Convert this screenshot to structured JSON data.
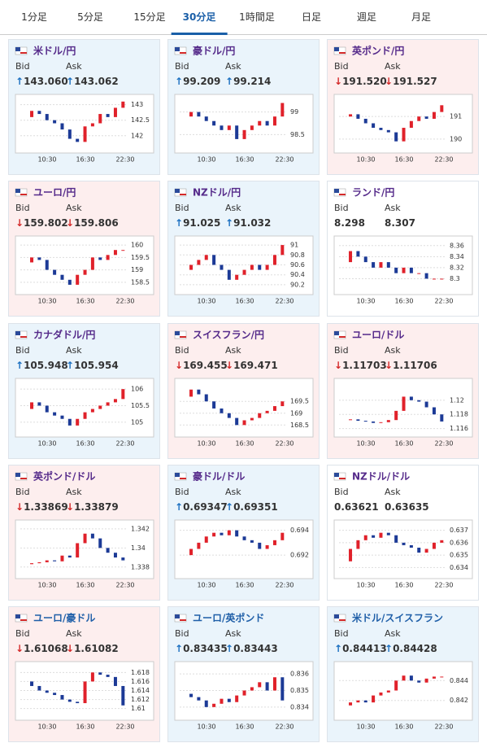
{
  "tabs": [
    "1分足",
    "5分足",
    "15分足",
    "30分足",
    "1時間足",
    "日足",
    "週足",
    "月足"
  ],
  "active_tab": 3,
  "up_color": "#e0212a",
  "down_color": "#1c3a96",
  "cards": [
    {
      "title": "米ドル/円",
      "title_color": "#552a8a",
      "bid_label": "Bid",
      "ask_label": "Ask",
      "arrow": "↑",
      "trend": "up",
      "bid": "143.060",
      "ask": "143.062",
      "ylim": [
        141.6,
        143.2
      ],
      "yticks": [
        142,
        142.5,
        143
      ],
      "xlabels": [
        "10:30",
        "16:30",
        "22:30"
      ],
      "values": [
        142.6,
        142.8,
        142.7,
        142.5,
        142.4,
        142.2,
        141.9,
        141.8,
        142.3,
        142.4,
        142.7,
        142.6,
        142.9,
        143.1
      ]
    },
    {
      "title": "豪ドル/円",
      "title_color": "#552a8a",
      "bid_label": "Bid",
      "ask_label": "Ask",
      "arrow": "↑",
      "trend": "up",
      "bid": "99.209",
      "ask": "99.214",
      "ylim": [
        98.2,
        99.3
      ],
      "yticks": [
        98.5,
        99
      ],
      "xlabels": [
        "10:30",
        "16:30",
        "22:30"
      ],
      "values": [
        98.9,
        99.0,
        98.9,
        98.8,
        98.7,
        98.6,
        98.7,
        98.4,
        98.6,
        98.7,
        98.8,
        98.7,
        98.9,
        99.2
      ]
    },
    {
      "title": "英ポンド/円",
      "title_color": "#552a8a",
      "bid_label": "Bid",
      "ask_label": "Ask",
      "arrow": "↓",
      "trend": "down",
      "bid": "191.520",
      "ask": "191.527",
      "ylim": [
        189.6,
        191.8
      ],
      "yticks": [
        190,
        191
      ],
      "xlabels": [
        "10:30",
        "16:30",
        "22:30"
      ],
      "values": [
        191.0,
        191.1,
        190.9,
        190.7,
        190.5,
        190.4,
        190.3,
        189.9,
        190.5,
        190.8,
        191.0,
        190.9,
        191.2,
        191.5
      ]
    },
    {
      "title": "ユーロ/円",
      "title_color": "#552a8a",
      "bid_label": "Bid",
      "ask_label": "Ask",
      "arrow": "↓",
      "trend": "down",
      "bid": "159.802",
      "ask": "159.806",
      "ylim": [
        158.2,
        160.2
      ],
      "yticks": [
        158.5,
        159,
        159.5,
        160
      ],
      "xlabels": [
        "10:30",
        "16:30",
        "22:30"
      ],
      "values": [
        159.3,
        159.5,
        159.4,
        159.0,
        158.8,
        158.6,
        158.4,
        158.8,
        159.0,
        159.5,
        159.4,
        159.6,
        159.8,
        159.8
      ]
    },
    {
      "title": "NZドル/円",
      "title_color": "#552a8a",
      "bid_label": "Bid",
      "ask_label": "Ask",
      "arrow": "↑",
      "trend": "up",
      "bid": "91.025",
      "ask": "91.032",
      "ylim": [
        90.1,
        91.1
      ],
      "yticks": [
        90.2,
        90.4,
        90.6,
        90.8,
        91
      ],
      "xlabels": [
        "10:30",
        "16:30",
        "22:30"
      ],
      "values": [
        90.5,
        90.6,
        90.7,
        90.8,
        90.6,
        90.5,
        90.3,
        90.4,
        90.5,
        90.6,
        90.5,
        90.6,
        90.8,
        91.0
      ]
    },
    {
      "title": "ランド/円",
      "title_color": "#552a8a",
      "bid_label": "Bid",
      "ask_label": "Ask",
      "trend": "flat",
      "bid": "8.298",
      "ask": "8.307",
      "ylim": [
        8.28,
        8.37
      ],
      "yticks": [
        8.3,
        8.32,
        8.34,
        8.36
      ],
      "xlabels": [
        "10:30",
        "16:30",
        "22:30"
      ],
      "values": [
        8.33,
        8.35,
        8.34,
        8.33,
        8.32,
        8.33,
        8.32,
        8.31,
        8.32,
        8.31,
        8.31,
        8.3,
        8.3,
        8.3
      ]
    },
    {
      "title": "カナダドル/円",
      "title_color": "#552a8a",
      "bid_label": "Bid",
      "ask_label": "Ask",
      "arrow": "↑",
      "trend": "up",
      "bid": "105.948",
      "ask": "105.954",
      "ylim": [
        104.7,
        106.2
      ],
      "yticks": [
        105,
        105.5,
        106
      ],
      "xlabels": [
        "10:30",
        "16:30",
        "22:30"
      ],
      "values": [
        105.4,
        105.6,
        105.5,
        105.3,
        105.2,
        105.1,
        104.9,
        105.1,
        105.3,
        105.4,
        105.5,
        105.6,
        105.7,
        106.0
      ]
    },
    {
      "title": "スイスフラン/円",
      "title_color": "#552a8a",
      "bid_label": "Bid",
      "ask_label": "Ask",
      "arrow": "↓",
      "trend": "down",
      "bid": "169.455",
      "ask": "169.471",
      "ylim": [
        168.2,
        170.3
      ],
      "yticks": [
        168.5,
        169,
        169.5
      ],
      "xlabels": [
        "10:30",
        "16:30",
        "22:30"
      ],
      "values": [
        169.7,
        170.0,
        169.8,
        169.5,
        169.2,
        169.0,
        168.8,
        168.5,
        168.7,
        168.8,
        169.0,
        169.1,
        169.3,
        169.5
      ]
    },
    {
      "title": "ユーロ/ドル",
      "title_color": "#552a8a",
      "bid_label": "Bid",
      "ask_label": "Ask",
      "arrow": "↓",
      "trend": "down",
      "bid": "1.11703",
      "ask": "1.11706",
      "ylim": [
        1.1155,
        1.1225
      ],
      "yticks": [
        1.116,
        1.118,
        1.12
      ],
      "xlabels": [
        "10:30",
        "16:30",
        "22:30"
      ],
      "values": [
        1.1172,
        1.1173,
        1.1171,
        1.117,
        1.1168,
        1.1169,
        1.1172,
        1.1185,
        1.1205,
        1.12,
        1.1198,
        1.119,
        1.118,
        1.117
      ]
    },
    {
      "title": "英ポンド/ドル",
      "title_color": "#552a8a",
      "bid_label": "Bid",
      "ask_label": "Ask",
      "arrow": "↓",
      "trend": "down",
      "bid": "1.33869",
      "ask": "1.33879",
      "ylim": [
        1.3373,
        1.3425
      ],
      "yticks": [
        1.338,
        1.34,
        1.342
      ],
      "xlabels": [
        "10:30",
        "16:30",
        "22:30"
      ],
      "values": [
        1.3383,
        1.3384,
        1.3385,
        1.3387,
        1.3386,
        1.3392,
        1.339,
        1.3405,
        1.3415,
        1.341,
        1.34,
        1.3395,
        1.339,
        1.3387
      ]
    },
    {
      "title": "豪ドル/ドル",
      "title_color": "#552a8a",
      "bid_label": "Bid",
      "ask_label": "Ask",
      "arrow": "↑",
      "trend": "up",
      "bid": "0.69347",
      "ask": "0.69351",
      "ylim": [
        0.6905,
        0.6945
      ],
      "yticks": [
        0.692,
        0.694
      ],
      "xlabels": [
        "10:30",
        "16:30",
        "22:30"
      ],
      "values": [
        0.692,
        0.6925,
        0.693,
        0.6935,
        0.6938,
        0.6936,
        0.694,
        0.6935,
        0.6932,
        0.693,
        0.6925,
        0.6928,
        0.6932,
        0.6938
      ]
    },
    {
      "title": "NZドル/ドル",
      "title_color": "#552a8a",
      "bid_label": "Bid",
      "ask_label": "Ask",
      "trend": "flat",
      "bid": "0.63621",
      "ask": "0.63635",
      "ylim": [
        0.6335,
        0.6375
      ],
      "yticks": [
        0.634,
        0.635,
        0.636,
        0.637
      ],
      "xlabels": [
        "10:30",
        "16:30",
        "22:30"
      ],
      "values": [
        0.6345,
        0.6355,
        0.6362,
        0.6366,
        0.6364,
        0.6368,
        0.6366,
        0.636,
        0.6358,
        0.6356,
        0.6352,
        0.6355,
        0.636,
        0.6362
      ]
    },
    {
      "title": "ユーロ/豪ドル",
      "title_color": "#1f5fa8",
      "bid_label": "Bid",
      "ask_label": "Ask",
      "arrow": "↓",
      "trend": "down",
      "bid": "1.61068",
      "ask": "1.61082",
      "ylim": [
        1.6085,
        1.6195
      ],
      "yticks": [
        1.61,
        1.612,
        1.614,
        1.616,
        1.618
      ],
      "xlabels": [
        "10:30",
        "16:30",
        "22:30"
      ],
      "values": [
        1.616,
        1.615,
        1.614,
        1.6135,
        1.613,
        1.612,
        1.6115,
        1.6112,
        1.616,
        1.618,
        1.6175,
        1.617,
        1.615,
        1.6107
      ]
    },
    {
      "title": "ユーロ/英ポンド",
      "title_color": "#1f5fa8",
      "bid_label": "Bid",
      "ask_label": "Ask",
      "arrow": "↑",
      "trend": "up",
      "bid": "0.83435",
      "ask": "0.83443",
      "ylim": [
        0.8335,
        0.8365
      ],
      "yticks": [
        0.834,
        0.835,
        0.836
      ],
      "xlabels": [
        "10:30",
        "16:30",
        "22:30"
      ],
      "values": [
        0.8348,
        0.8346,
        0.8344,
        0.834,
        0.8342,
        0.8345,
        0.8343,
        0.8347,
        0.835,
        0.8352,
        0.8355,
        0.835,
        0.8358,
        0.8344
      ]
    },
    {
      "title": "米ドル/スイスフラン",
      "title_color": "#1f5fa8",
      "bid_label": "Bid",
      "ask_label": "Ask",
      "arrow": "↑",
      "trend": "up",
      "bid": "0.84413",
      "ask": "0.84428",
      "ylim": [
        0.8405,
        0.8455
      ],
      "yticks": [
        0.842,
        0.844
      ],
      "xlabels": [
        "10:30",
        "16:30",
        "22:30"
      ],
      "values": [
        0.8415,
        0.8418,
        0.842,
        0.8418,
        0.8425,
        0.8428,
        0.843,
        0.844,
        0.8445,
        0.844,
        0.8438,
        0.8442,
        0.8444,
        0.8444
      ]
    }
  ]
}
